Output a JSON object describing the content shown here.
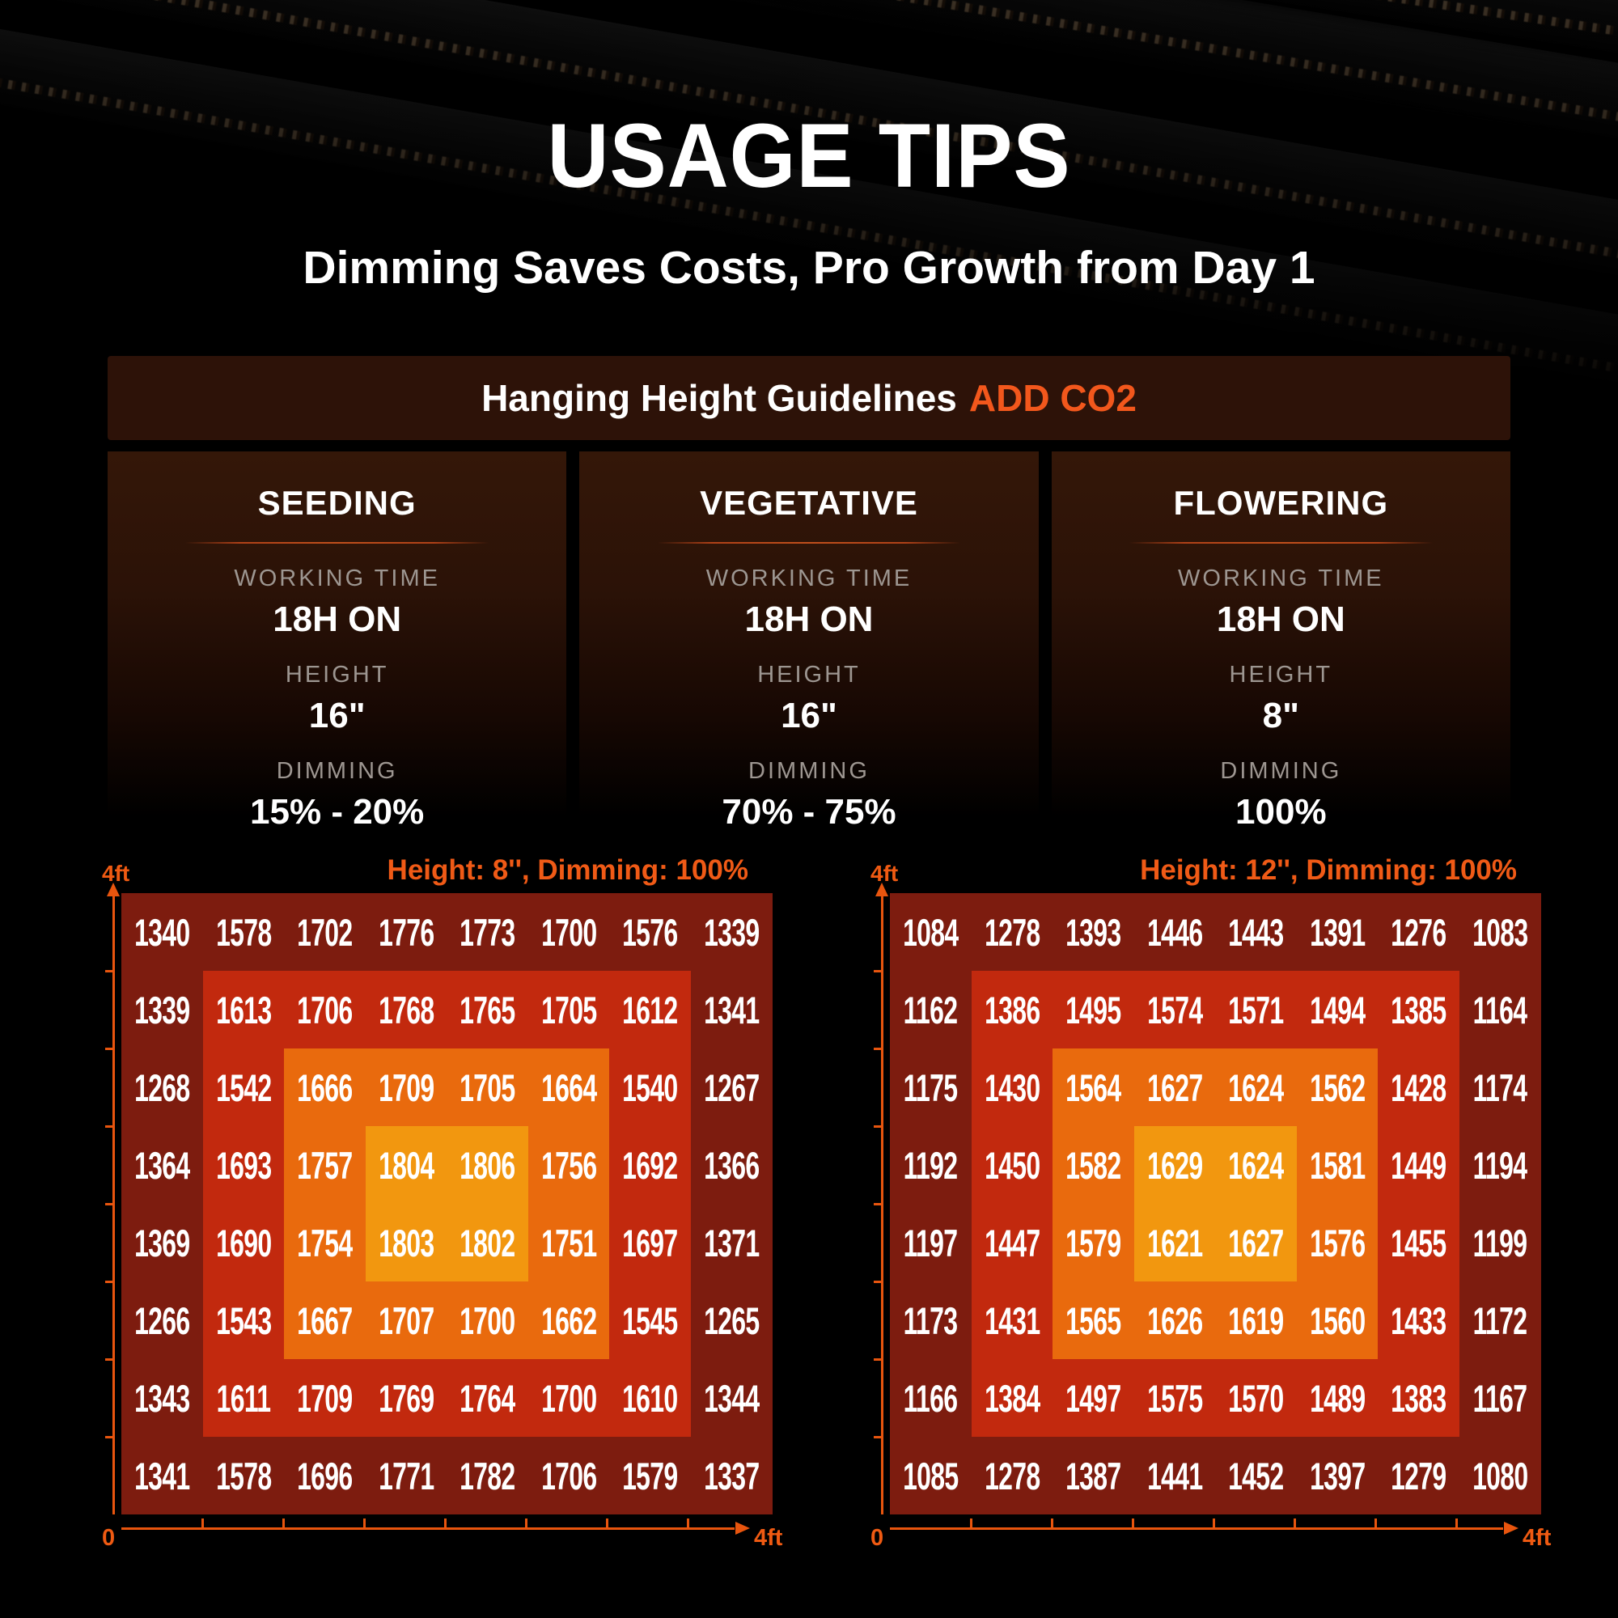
{
  "page": {
    "title": "USAGE TIPS",
    "subtitle": "Dimming Saves Costs, Pro Growth from Day 1"
  },
  "guidelines": {
    "header_text": "Hanging Height Guidelines",
    "header_highlight": "ADD CO2",
    "stages": [
      {
        "name": "SEEDING",
        "working_time_label": "WORKING TIME",
        "working_time": "18H ON",
        "height_label": "HEIGHT",
        "height": "16\"",
        "dimming_label": "DIMMING",
        "dimming": "15% - 20%"
      },
      {
        "name": "VEGETATIVE",
        "working_time_label": "WORKING TIME",
        "working_time": "18H ON",
        "height_label": "HEIGHT",
        "height": "16\"",
        "dimming_label": "DIMMING",
        "dimming": "70% - 75%"
      },
      {
        "name": "FLOWERING",
        "working_time_label": "WORKING TIME",
        "working_time": "18H ON",
        "height_label": "HEIGHT",
        "height": "8\"",
        "dimming_label": "DIMMING",
        "dimming": "100%"
      }
    ]
  },
  "chart_data": [
    {
      "type": "heatmap",
      "title": "Height: 8'', Dimming: 100%",
      "rows": 8,
      "cols": 8,
      "x_min_label": "0",
      "x_max_label": "4ft",
      "y_max_label": "4ft",
      "x_range_ft": [
        0,
        4
      ],
      "y_range_ft": [
        0,
        4
      ],
      "grid": false,
      "values": [
        [
          1340,
          1578,
          1702,
          1776,
          1773,
          1700,
          1576,
          1339
        ],
        [
          1339,
          1613,
          1706,
          1768,
          1765,
          1705,
          1612,
          1341
        ],
        [
          1268,
          1542,
          1666,
          1709,
          1705,
          1664,
          1540,
          1267
        ],
        [
          1364,
          1693,
          1757,
          1804,
          1806,
          1756,
          1692,
          1366
        ],
        [
          1369,
          1690,
          1754,
          1803,
          1802,
          1751,
          1697,
          1371
        ],
        [
          1266,
          1543,
          1667,
          1707,
          1700,
          1662,
          1545,
          1265
        ],
        [
          1343,
          1611,
          1709,
          1769,
          1764,
          1700,
          1610,
          1344
        ],
        [
          1341,
          1578,
          1696,
          1771,
          1782,
          1706,
          1579,
          1337
        ]
      ],
      "level_colors": [
        "#7D1C0F",
        "#C2290E",
        "#E96A0D",
        "#F2970F"
      ]
    },
    {
      "type": "heatmap",
      "title": "Height: 12'', Dimming: 100%",
      "rows": 8,
      "cols": 8,
      "x_min_label": "0",
      "x_max_label": "4ft",
      "y_max_label": "4ft",
      "x_range_ft": [
        0,
        4
      ],
      "y_range_ft": [
        0,
        4
      ],
      "grid": false,
      "values": [
        [
          1084,
          1278,
          1393,
          1446,
          1443,
          1391,
          1276,
          1083
        ],
        [
          1162,
          1386,
          1495,
          1574,
          1571,
          1494,
          1385,
          1164
        ],
        [
          1175,
          1430,
          1564,
          1627,
          1624,
          1562,
          1428,
          1174
        ],
        [
          1192,
          1450,
          1582,
          1629,
          1624,
          1581,
          1449,
          1194
        ],
        [
          1197,
          1447,
          1579,
          1621,
          1627,
          1576,
          1455,
          1199
        ],
        [
          1173,
          1431,
          1565,
          1626,
          1619,
          1560,
          1433,
          1172
        ],
        [
          1166,
          1384,
          1497,
          1575,
          1570,
          1489,
          1383,
          1167
        ],
        [
          1085,
          1278,
          1387,
          1441,
          1452,
          1397,
          1279,
          1080
        ]
      ],
      "level_colors": [
        "#7D1C0F",
        "#C2290E",
        "#E96A0D",
        "#F2970F"
      ]
    }
  ],
  "colors": {
    "background": "#000000",
    "accent_orange": "#F2571C",
    "heatmap_title_orange": "#F05A16",
    "axis_orange": "#E8550E",
    "label_gray": "#9D9691",
    "panel_brown": "#2D1208"
  }
}
